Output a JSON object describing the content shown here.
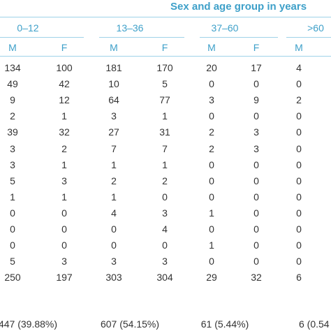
{
  "header": {
    "title": "Sex and age group in years",
    "groups": [
      "0–12",
      "13–36",
      "37–60",
      ">60"
    ],
    "subheaders": [
      "M",
      "F",
      "M",
      "F",
      "M",
      "F",
      "M"
    ]
  },
  "rows": [
    [
      "134",
      "100",
      "181",
      "170",
      "20",
      "17",
      "4"
    ],
    [
      "49",
      "42",
      "10",
      "5",
      "0",
      "0",
      "0"
    ],
    [
      "9",
      "12",
      "64",
      "77",
      "3",
      "9",
      "2"
    ],
    [
      "2",
      "1",
      "3",
      "1",
      "0",
      "0",
      "0"
    ],
    [
      "39",
      "32",
      "27",
      "31",
      "2",
      "3",
      "0"
    ],
    [
      "3",
      "2",
      "7",
      "7",
      "2",
      "3",
      "0"
    ],
    [
      "3",
      "1",
      "1",
      "1",
      "0",
      "0",
      "0"
    ],
    [
      "5",
      "3",
      "2",
      "2",
      "0",
      "0",
      "0"
    ],
    [
      "1",
      "1",
      "1",
      "0",
      "0",
      "0",
      "0"
    ],
    [
      "0",
      "0",
      "4",
      "3",
      "1",
      "0",
      "0"
    ],
    [
      "0",
      "0",
      "0",
      "4",
      "0",
      "0",
      "0"
    ],
    [
      "0",
      "0",
      "0",
      "0",
      "1",
      "0",
      "0"
    ],
    [
      "5",
      "3",
      "3",
      "3",
      "0",
      "0",
      "0"
    ],
    [
      "250",
      "197",
      "303",
      "304",
      "29",
      "32",
      "6"
    ]
  ],
  "group_totals": [
    "447 (39.88%)",
    "607 (54.15%)",
    "61 (5.44%)",
    "6 (0.54"
  ]
}
